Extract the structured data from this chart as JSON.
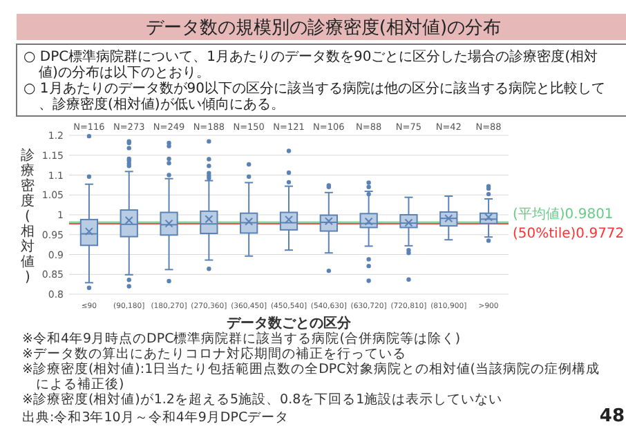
{
  "chart_data": {
    "type": "box",
    "title": "データ数の規模別の診療密度(相対値)の分布",
    "subtitle": "○ DPC標準病院群について、1月あたりのデータ数を90ごとに区分した場合の診療密度(相対値)の分布は以下のとおり。\n○ 1月あたりのデータ数が90以下の区分に該当する病院は他の区分に該当する病院と比較して、診療密度(相対値)が低い傾向にある。",
    "xlabel": "データ数ごとの区分",
    "ylabel": "診療密度(相対値)",
    "categories": [
      "≤90",
      "(90,180]",
      "(180,270]",
      "(270,360]",
      "(360,450]",
      "(450,540]",
      "(540,630]",
      "(630,720]",
      "(720,810]",
      "(810,900]",
      ">900"
    ],
    "color": "#b8cce4",
    "boxes": [
      {
        "low": 0.829,
        "q1": 0.923,
        "median": 0.952,
        "q3": 0.988,
        "high": 1.077,
        "mean": 0.958,
        "outliers": [
          1.198,
          1.096,
          0.816
        ]
      },
      {
        "low": 0.849,
        "q1": 0.945,
        "median": 0.976,
        "q3": 1.012,
        "high": 1.109,
        "mean": 0.986,
        "outliers": [
          1.185,
          1.181,
          1.168,
          1.141,
          1.136,
          1.129,
          1.123,
          0.836,
          0.82
        ]
      },
      {
        "low": 0.862,
        "q1": 0.949,
        "median": 0.975,
        "q3": 1.006,
        "high": 1.091,
        "mean": 0.978,
        "outliers": [
          1.181,
          1.173,
          1.141,
          1.13,
          1.1,
          0.833
        ]
      },
      {
        "low": 0.886,
        "q1": 0.953,
        "median": 0.977,
        "q3": 1.009,
        "high": 1.086,
        "mean": 0.989,
        "outliers": [
          1.185,
          1.14,
          1.123,
          1.105,
          1.098,
          1.092,
          0.864
        ]
      },
      {
        "low": 0.896,
        "q1": 0.954,
        "median": 0.98,
        "q3": 1.004,
        "high": 1.081,
        "mean": 0.983,
        "outliers": [
          1.127,
          1.096
        ]
      },
      {
        "low": 0.911,
        "q1": 0.962,
        "median": 0.98,
        "q3": 1.006,
        "high": 1.072,
        "mean": 0.988,
        "outliers": [
          1.161,
          1.106,
          1.082
        ]
      },
      {
        "low": 0.904,
        "q1": 0.959,
        "median": 0.981,
        "q3": 0.999,
        "high": 1.056,
        "mean": 0.984,
        "outliers": [
          1.074,
          1.07,
          0.859
        ]
      },
      {
        "low": 0.921,
        "q1": 0.968,
        "median": 0.978,
        "q3": 1.003,
        "high": 1.059,
        "mean": 0.983,
        "outliers": [
          1.081,
          1.07,
          1.052,
          0.888,
          0.871,
          0.834
        ]
      },
      {
        "low": 0.922,
        "q1": 0.968,
        "median": 0.979,
        "q3": 1.0,
        "high": 1.044,
        "mean": 0.98,
        "outliers": [
          0.911,
          0.904,
          0.837
        ]
      },
      {
        "low": 0.937,
        "q1": 0.972,
        "median": 0.991,
        "q3": 1.007,
        "high": 1.047,
        "mean": 0.991
      },
      {
        "low": 0.944,
        "q1": 0.978,
        "median": 0.989,
        "q3": 1.004,
        "high": 1.04,
        "mean": 0.994,
        "outliers": [
          1.072,
          1.066,
          1.052,
          0.935
        ]
      }
    ],
    "ylim": [
      0.8,
      1.2
    ],
    "yticks": [
      0.8,
      0.85,
      0.9,
      0.95,
      1,
      1.05,
      1.1,
      1.15,
      1.2
    ],
    "grid": "y",
    "ref_lines": [
      {
        "axis": "y",
        "value": 0.9801,
        "label": "(平均値)0.9801",
        "color": "#66cc88"
      },
      {
        "axis": "y",
        "value": 0.9772,
        "label": "(50%tile)0.9772",
        "color": "#ff3333"
      }
    ],
    "annotations": [
      "N=116",
      "N=273",
      "N=249",
      "N=188",
      "N=150",
      "N=121",
      "N=106",
      "N=88",
      "N=75",
      "N=42",
      "N=88",
      "※令和4年9月時点のDPC標準病院群に該当する病院(合併病院等は除く)",
      "※データ数の算出にあたりコロナ対応期間の補正を行っている",
      "※診療密度(相対値):1日当たり包括範囲点数の全DPC対象病院との相対値(当該病院の症例構成による補正後)",
      "※診療密度(相対値)が1.2を超える5施設、0.8を下回る1施設は表示していない",
      "出典:令和3年10月～令和4年9月DPCデータ",
      "48"
    ]
  }
}
